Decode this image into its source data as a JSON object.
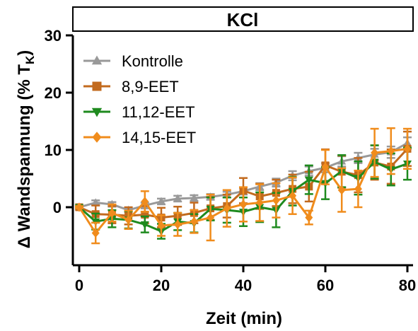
{
  "chart_data": {
    "type": "line",
    "title": "KCl",
    "xlabel": "Zeit (min)",
    "ylabel_prefix": "Δ Wandspannung (% T",
    "ylabel_sub": "K",
    "ylabel_suffix": ")",
    "xlim": [
      -2,
      81
    ],
    "ylim": [
      -10,
      30
    ],
    "xticks": [
      0,
      20,
      40,
      60,
      80
    ],
    "yticks": [
      0,
      10,
      20,
      30
    ],
    "grid": false,
    "legend_position": "top-left",
    "series": [
      {
        "name": "Kontrolle",
        "color": "#999999",
        "marker": "triangle-up",
        "x": [
          0,
          4,
          8,
          12,
          16,
          20,
          24,
          28,
          32,
          36,
          40,
          44,
          48,
          52,
          56,
          60,
          64,
          68,
          72,
          76,
          80
        ],
        "y": [
          0,
          0.8,
          0.5,
          -0.5,
          0.3,
          1.0,
          1.5,
          1.6,
          1.8,
          2.2,
          2.8,
          3.6,
          4.3,
          5.5,
          6.3,
          6.9,
          8.0,
          8.6,
          9.2,
          9.6,
          11.2
        ],
        "err": [
          0.3,
          0.4,
          0.4,
          0.4,
          0.5,
          0.5,
          0.5,
          0.5,
          0.5,
          0.5,
          0.6,
          0.6,
          0.7,
          0.8,
          0.8,
          0.8,
          0.9,
          0.9,
          1.0,
          1.0,
          1.0
        ]
      },
      {
        "name": "8,9-EET",
        "color": "#C26A1E",
        "marker": "square",
        "x": [
          0,
          4,
          8,
          12,
          16,
          20,
          24,
          28,
          32,
          36,
          40,
          44,
          48,
          52,
          56,
          60,
          64,
          68,
          72,
          76,
          80
        ],
        "y": [
          0,
          -1.2,
          -1.3,
          -1.5,
          -1.3,
          -1.8,
          -1.5,
          -1.0,
          -0.2,
          0.2,
          2.9,
          1.9,
          2.5,
          3.2,
          3.6,
          7.3,
          6.2,
          5.6,
          7.8,
          7.1,
          10.2
        ],
        "err": [
          0.2,
          1.5,
          1.5,
          1.5,
          1.5,
          1.7,
          1.6,
          1.8,
          2.0,
          2.0,
          2.2,
          2.2,
          2.3,
          2.5,
          2.6,
          2.8,
          2.8,
          3.0,
          3.0,
          3.0,
          3.0
        ]
      },
      {
        "name": "11,12-EET",
        "color": "#1E8A1E",
        "marker": "triangle-down",
        "x": [
          0,
          4,
          8,
          12,
          16,
          20,
          24,
          28,
          32,
          36,
          40,
          44,
          48,
          52,
          56,
          60,
          64,
          68,
          72,
          76,
          80
        ],
        "y": [
          0,
          -2.5,
          -2.0,
          -2.2,
          -3.0,
          -4.2,
          -2.5,
          -2.8,
          -0.3,
          -0.5,
          -0.8,
          0.0,
          -0.5,
          2.8,
          4.8,
          4.2,
          6.3,
          5.1,
          7.9,
          6.6,
          7.6
        ],
        "err": [
          0.2,
          1.4,
          1.5,
          1.5,
          1.4,
          1.3,
          1.5,
          1.6,
          2.0,
          2.2,
          2.5,
          2.6,
          3.0,
          2.5,
          2.5,
          2.8,
          2.8,
          2.9,
          2.9,
          2.8,
          2.8
        ]
      },
      {
        "name": "14,15-EET",
        "color": "#F08C1C",
        "marker": "diamond",
        "x": [
          0,
          4,
          8,
          12,
          16,
          20,
          24,
          28,
          32,
          36,
          40,
          44,
          48,
          52,
          56,
          60,
          64,
          68,
          72,
          76,
          80
        ],
        "y": [
          0,
          -4.5,
          -1.0,
          -2.2,
          1.0,
          -3.2,
          -3.0,
          -2.5,
          -1.8,
          -0.2,
          0.5,
          0.8,
          1.2,
          2.0,
          -1.8,
          7.0,
          3.0,
          3.2,
          9.5,
          9.8,
          10.2
        ],
        "err": [
          0.2,
          1.8,
          1.5,
          1.6,
          1.8,
          1.8,
          2.0,
          2.0,
          4.0,
          3.2,
          3.0,
          3.2,
          3.0,
          3.2,
          1.2,
          3.0,
          3.8,
          3.2,
          4.2,
          4.0,
          3.5
        ]
      }
    ]
  }
}
